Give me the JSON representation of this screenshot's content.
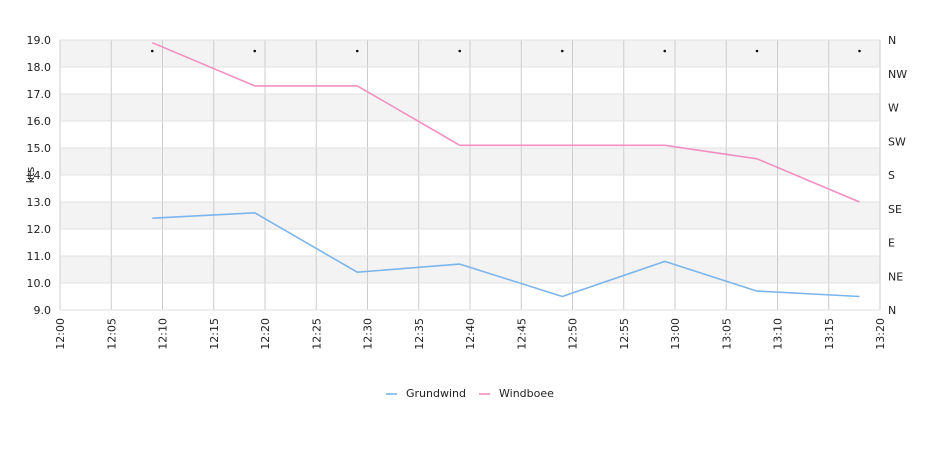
{
  "chart_data": {
    "type": "line",
    "ylabel": "kts",
    "ylim": [
      9.0,
      19.0
    ],
    "y_ticks": [
      "9.0",
      "10.0",
      "11.0",
      "12.0",
      "13.0",
      "14.0",
      "15.0",
      "16.0",
      "17.0",
      "18.0",
      "19.0"
    ],
    "x_ticks": [
      "12:00",
      "12:05",
      "12:10",
      "12:15",
      "12:20",
      "12:25",
      "12:30",
      "12:35",
      "12:40",
      "12:45",
      "12:50",
      "12:55",
      "13:00",
      "13:05",
      "13:10",
      "13:15",
      "13:20"
    ],
    "right_axis_labels": [
      "N",
      "NE",
      "E",
      "SE",
      "S",
      "SW",
      "W",
      "NW",
      "N"
    ],
    "grid": true,
    "legend_position": "bottom",
    "series": [
      {
        "name": "Grundwind",
        "color": "#7cb5ec",
        "x": [
          "12:09",
          "12:19",
          "12:29",
          "12:39",
          "12:49",
          "12:59",
          "13:08",
          "13:18"
        ],
        "values": [
          12.4,
          12.6,
          10.4,
          10.7,
          9.5,
          10.8,
          9.7,
          9.5
        ]
      },
      {
        "name": "Windboee",
        "color": "#f190c0",
        "x": [
          "12:09",
          "12:19",
          "12:29",
          "12:39",
          "12:49",
          "12:59",
          "13:08",
          "13:18"
        ],
        "values": [
          18.9,
          17.3,
          17.3,
          15.1,
          15.1,
          15.1,
          14.6,
          13.0
        ]
      }
    ],
    "direction_markers": {
      "x": [
        "12:09",
        "12:19",
        "12:29",
        "12:39",
        "12:49",
        "12:59",
        "13:08",
        "13:18"
      ]
    }
  }
}
